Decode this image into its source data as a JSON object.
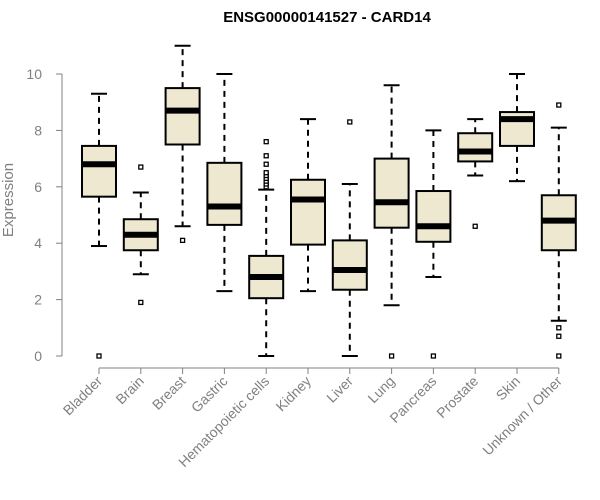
{
  "chart_data": {
    "type": "box",
    "title": "ENSG00000141527 - CARD14",
    "xlabel": "",
    "ylabel": "Expression",
    "ylim": [
      0,
      10
    ],
    "yticks": [
      0,
      2,
      4,
      6,
      8,
      10
    ],
    "box_fill": "#efe8d0",
    "categories": [
      "Bladder",
      "Brain",
      "Breast",
      "Gastric",
      "Hematopoietic cells",
      "Kidney",
      "Liver",
      "Lung",
      "Pancreas",
      "Prostate",
      "Skin",
      "Unknown / Other"
    ],
    "boxes": [
      {
        "name": "Bladder",
        "whisker_low": 3.9,
        "q1": 5.65,
        "median": 6.8,
        "q3": 7.45,
        "whisker_high": 9.3,
        "outliers": [
          0.0
        ]
      },
      {
        "name": "Brain",
        "whisker_low": 2.9,
        "q1": 3.75,
        "median": 4.3,
        "q3": 4.85,
        "whisker_high": 5.8,
        "outliers": [
          1.9,
          6.7
        ]
      },
      {
        "name": "Breast",
        "whisker_low": 4.6,
        "q1": 7.5,
        "median": 8.7,
        "q3": 9.5,
        "whisker_high": 11.0,
        "outliers": [
          4.1
        ]
      },
      {
        "name": "Gastric",
        "whisker_low": 2.3,
        "q1": 4.65,
        "median": 5.3,
        "q3": 6.85,
        "whisker_high": 10.0,
        "outliers": []
      },
      {
        "name": "Hematopoietic cells",
        "whisker_low": 0.0,
        "q1": 2.05,
        "median": 2.8,
        "q3": 3.55,
        "whisker_high": 5.9,
        "outliers": [
          6.0,
          6.1,
          6.2,
          6.3,
          6.4,
          6.5,
          6.8,
          7.1,
          7.6
        ]
      },
      {
        "name": "Kidney",
        "whisker_low": 2.3,
        "q1": 3.95,
        "median": 5.55,
        "q3": 6.25,
        "whisker_high": 8.4,
        "outliers": []
      },
      {
        "name": "Liver",
        "whisker_low": 0.0,
        "q1": 2.35,
        "median": 3.05,
        "q3": 4.1,
        "whisker_high": 6.1,
        "outliers": [
          8.3
        ]
      },
      {
        "name": "Lung",
        "whisker_low": 1.8,
        "q1": 4.55,
        "median": 5.45,
        "q3": 7.0,
        "whisker_high": 9.6,
        "outliers": [
          0.0
        ]
      },
      {
        "name": "Pancreas",
        "whisker_low": 2.8,
        "q1": 4.05,
        "median": 4.6,
        "q3": 5.85,
        "whisker_high": 8.0,
        "outliers": [
          0.0
        ]
      },
      {
        "name": "Prostate",
        "whisker_low": 6.4,
        "q1": 6.9,
        "median": 7.25,
        "q3": 7.9,
        "whisker_high": 8.4,
        "outliers": [
          4.6
        ]
      },
      {
        "name": "Skin",
        "whisker_low": 6.2,
        "q1": 7.45,
        "median": 8.4,
        "q3": 8.65,
        "whisker_high": 10.0,
        "outliers": []
      },
      {
        "name": "Unknown / Other",
        "whisker_low": 1.25,
        "q1": 3.75,
        "median": 4.8,
        "q3": 5.7,
        "whisker_high": 8.1,
        "outliers": [
          0.0,
          0.7,
          1.0,
          8.9
        ]
      }
    ]
  }
}
